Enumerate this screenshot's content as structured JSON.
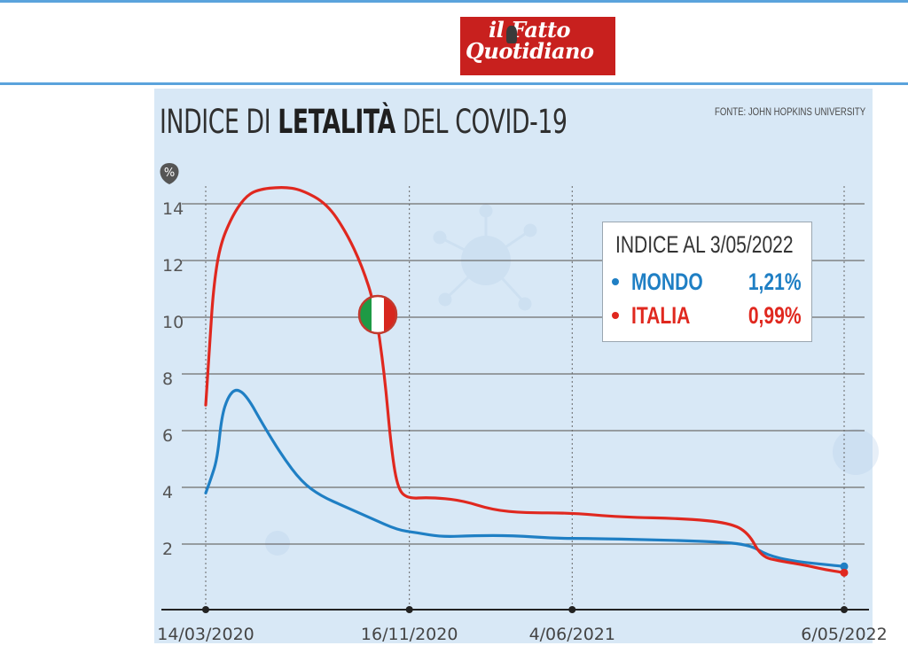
{
  "logo": {
    "line1": "il Fatto",
    "line2": "Quotidiano"
  },
  "colors": {
    "mondo": "#1f7fc4",
    "italia": "#e0281f",
    "panel": "#d8e8f6",
    "grid": "#6e6e6e"
  },
  "chart_data": {
    "type": "line",
    "title_normal_1": "INDICE DI ",
    "title_bold": "LETALITÀ",
    "title_normal_2": " DEL COVID-19",
    "source": "FONTE: JOHN HOPKINS UNIVERSITY",
    "y_unit": "%",
    "ylim": [
      0,
      15
    ],
    "yticks": [
      2,
      4,
      6,
      8,
      10,
      12,
      14
    ],
    "x_range": [
      "14/03/2020",
      "6/05/2022"
    ],
    "x_ticks": [
      {
        "date": "14/03/2020",
        "pos": 0.0
      },
      {
        "date": "16/11/2020",
        "pos": 0.319
      },
      {
        "date": "4/06/2021",
        "pos": 0.574
      },
      {
        "date": "6/05/2022",
        "pos": 1.0
      }
    ],
    "grid": "horizontal solid, vertical dotted at date ticks",
    "legend": {
      "title": "INDICE AL 3/05/2022",
      "entries": [
        {
          "name": "MONDO",
          "value": "1,21%"
        },
        {
          "name": "ITALIA",
          "value": "0,99%"
        }
      ],
      "placement": "top-right"
    },
    "series": [
      {
        "name": "MONDO",
        "points": [
          [
            0.0,
            3.8
          ],
          [
            0.008,
            4.3
          ],
          [
            0.018,
            5.0
          ],
          [
            0.025,
            6.5
          ],
          [
            0.035,
            7.2
          ],
          [
            0.048,
            7.5
          ],
          [
            0.065,
            7.2
          ],
          [
            0.09,
            6.2
          ],
          [
            0.12,
            5.1
          ],
          [
            0.15,
            4.2
          ],
          [
            0.18,
            3.7
          ],
          [
            0.22,
            3.3
          ],
          [
            0.26,
            2.9
          ],
          [
            0.3,
            2.5
          ],
          [
            0.33,
            2.4
          ],
          [
            0.37,
            2.25
          ],
          [
            0.42,
            2.3
          ],
          [
            0.48,
            2.3
          ],
          [
            0.55,
            2.2
          ],
          [
            0.6,
            2.2
          ],
          [
            0.7,
            2.15
          ],
          [
            0.78,
            2.1
          ],
          [
            0.85,
            2.0
          ],
          [
            0.88,
            1.6
          ],
          [
            0.92,
            1.4
          ],
          [
            0.96,
            1.3
          ],
          [
            1.0,
            1.21
          ]
        ]
      },
      {
        "name": "ITALIA",
        "points": [
          [
            0.0,
            6.9
          ],
          [
            0.006,
            9.0
          ],
          [
            0.012,
            11.0
          ],
          [
            0.022,
            12.5
          ],
          [
            0.04,
            13.5
          ],
          [
            0.06,
            14.2
          ],
          [
            0.08,
            14.5
          ],
          [
            0.12,
            14.6
          ],
          [
            0.15,
            14.5
          ],
          [
            0.19,
            14.0
          ],
          [
            0.22,
            13.0
          ],
          [
            0.245,
            11.8
          ],
          [
            0.265,
            10.4
          ],
          [
            0.28,
            8.0
          ],
          [
            0.29,
            5.5
          ],
          [
            0.3,
            4.0
          ],
          [
            0.315,
            3.6
          ],
          [
            0.35,
            3.65
          ],
          [
            0.4,
            3.55
          ],
          [
            0.45,
            3.2
          ],
          [
            0.5,
            3.1
          ],
          [
            0.57,
            3.1
          ],
          [
            0.65,
            2.95
          ],
          [
            0.75,
            2.9
          ],
          [
            0.82,
            2.75
          ],
          [
            0.85,
            2.4
          ],
          [
            0.87,
            1.55
          ],
          [
            0.9,
            1.4
          ],
          [
            0.94,
            1.25
          ],
          [
            0.97,
            1.1
          ],
          [
            1.0,
            0.99
          ]
        ]
      }
    ]
  }
}
